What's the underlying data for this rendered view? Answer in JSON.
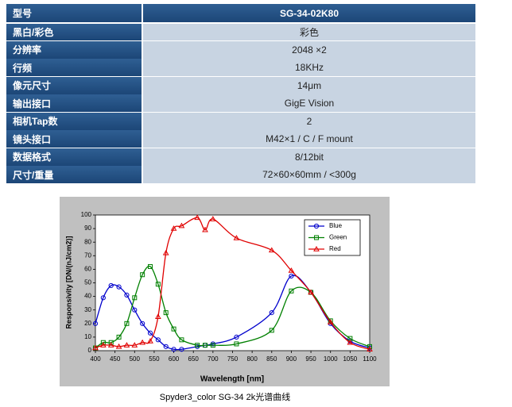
{
  "table": {
    "header": [
      "型号",
      "SG-34-02K80"
    ],
    "rows": [
      [
        "黑白/彩色",
        "彩色"
      ],
      [
        "分辨率",
        "2048 ×2"
      ],
      [
        "行频",
        "18KHz"
      ],
      [
        "像元尺寸",
        "14μm"
      ],
      [
        "输出接口",
        "GigE Vision"
      ],
      [
        "相机Tap数",
        "2"
      ],
      [
        "镜头接口",
        "M42×1 / C / F mount"
      ],
      [
        "数据格式",
        "8/12bit"
      ],
      [
        "尺寸/重量",
        "72×60×60mm / <300g"
      ]
    ]
  },
  "chart_data": {
    "type": "line",
    "x_label": "Wavelength [nm]",
    "y_label": "Responsivity [DN/(nJ/cm2)]",
    "x": [
      400,
      420,
      440,
      460,
      480,
      500,
      520,
      540,
      560,
      580,
      600,
      620,
      660,
      680,
      700,
      760,
      850,
      900,
      950,
      1000,
      1050,
      1100
    ],
    "series": [
      {
        "name": "Blue",
        "color": "#0000cc",
        "marker": "circle",
        "values": [
          20,
          39,
          48,
          47,
          41,
          30,
          20,
          13,
          8,
          3,
          1,
          1,
          3,
          4,
          5,
          10,
          28,
          55,
          43,
          20,
          7,
          2
        ]
      },
      {
        "name": "Green",
        "color": "#008000",
        "marker": "square",
        "values": [
          2,
          6,
          6,
          10,
          20,
          39,
          56,
          62,
          49,
          28,
          16,
          8,
          4,
          4,
          4,
          5,
          15,
          44,
          43,
          22,
          9,
          3
        ]
      },
      {
        "name": "Red",
        "color": "#e00000",
        "marker": "triangle",
        "values": [
          2,
          4,
          4,
          3,
          4,
          4,
          6,
          7,
          25,
          72,
          90,
          92,
          98,
          89,
          97,
          83,
          74,
          59,
          43,
          21,
          6,
          1
        ]
      }
    ],
    "xlim": [
      400,
      1100
    ],
    "xticks": [
      400,
      450,
      500,
      550,
      600,
      650,
      700,
      750,
      800,
      850,
      900,
      950,
      1000,
      1050,
      1100
    ],
    "ylim": [
      0,
      100
    ],
    "yticks": [
      0,
      10,
      20,
      30,
      40,
      50,
      60,
      70,
      80,
      90,
      100
    ],
    "grid": false,
    "legend": "upper right"
  },
  "caption": "Spyder3_color SG-34 2k光谱曲线"
}
